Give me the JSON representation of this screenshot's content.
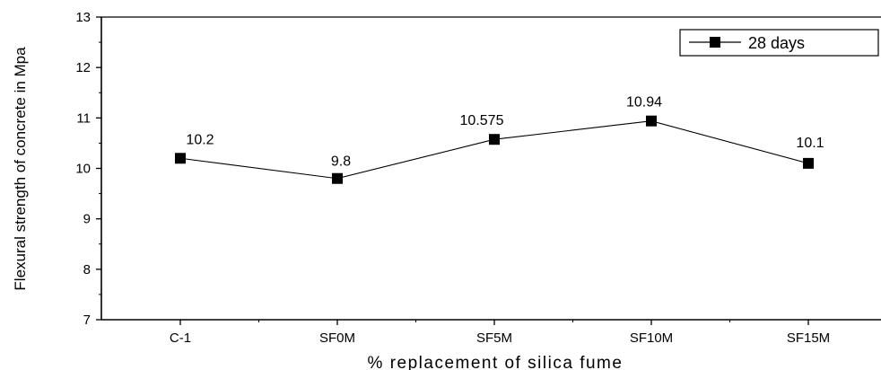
{
  "chart_data": {
    "type": "line",
    "categories": [
      "C-1",
      "SF0M",
      "SF5M",
      "SF10M",
      "SF15M"
    ],
    "series": [
      {
        "name": "28 days",
        "values": [
          10.2,
          9.8,
          10.575,
          10.94,
          10.1
        ]
      }
    ],
    "data_labels": [
      "10.2",
      "9.8",
      "10.575",
      "10.94",
      "10.1"
    ],
    "xlabel": "% replacement of silica fume",
    "ylabel": "Flexural strength of concrete in Mpa",
    "ylim": [
      7,
      13
    ],
    "yticks": [
      7,
      8,
      9,
      10,
      11,
      12,
      13
    ],
    "legend_position": "top-right",
    "grid": false,
    "colors": {
      "line": "#000000",
      "marker": "#000000"
    }
  }
}
